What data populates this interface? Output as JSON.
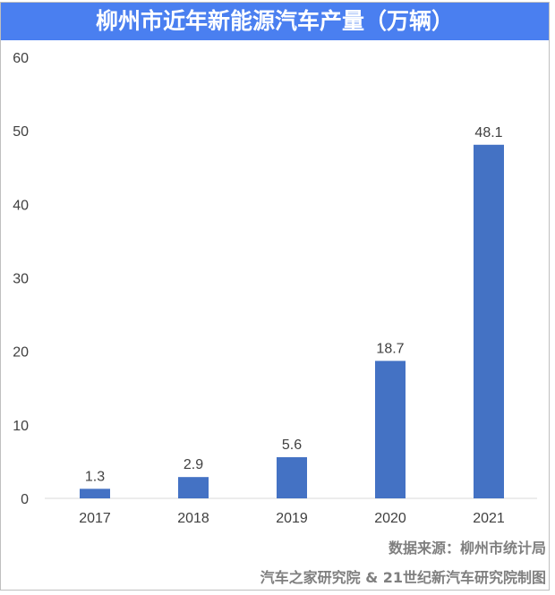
{
  "chart_data": {
    "type": "bar",
    "title": "柳州市近年新能源汽车产量（万辆）",
    "categories": [
      "2017",
      "2018",
      "2019",
      "2020",
      "2021"
    ],
    "values": [
      1.3,
      2.9,
      5.6,
      18.7,
      48.1
    ],
    "value_labels": [
      "1.3",
      "2.9",
      "5.6",
      "18.7",
      "48.1"
    ],
    "ylim": [
      0,
      60
    ],
    "yticks": [
      "0",
      "10",
      "20",
      "30",
      "40",
      "50",
      "60"
    ],
    "xlabel": "",
    "ylabel": "",
    "grid": false,
    "bar_color": "#4472c4"
  },
  "footer": {
    "source": "数据来源：柳州市统计局",
    "credit": "汽车之家研究院 & 21世纪新汽车研究院制图"
  }
}
